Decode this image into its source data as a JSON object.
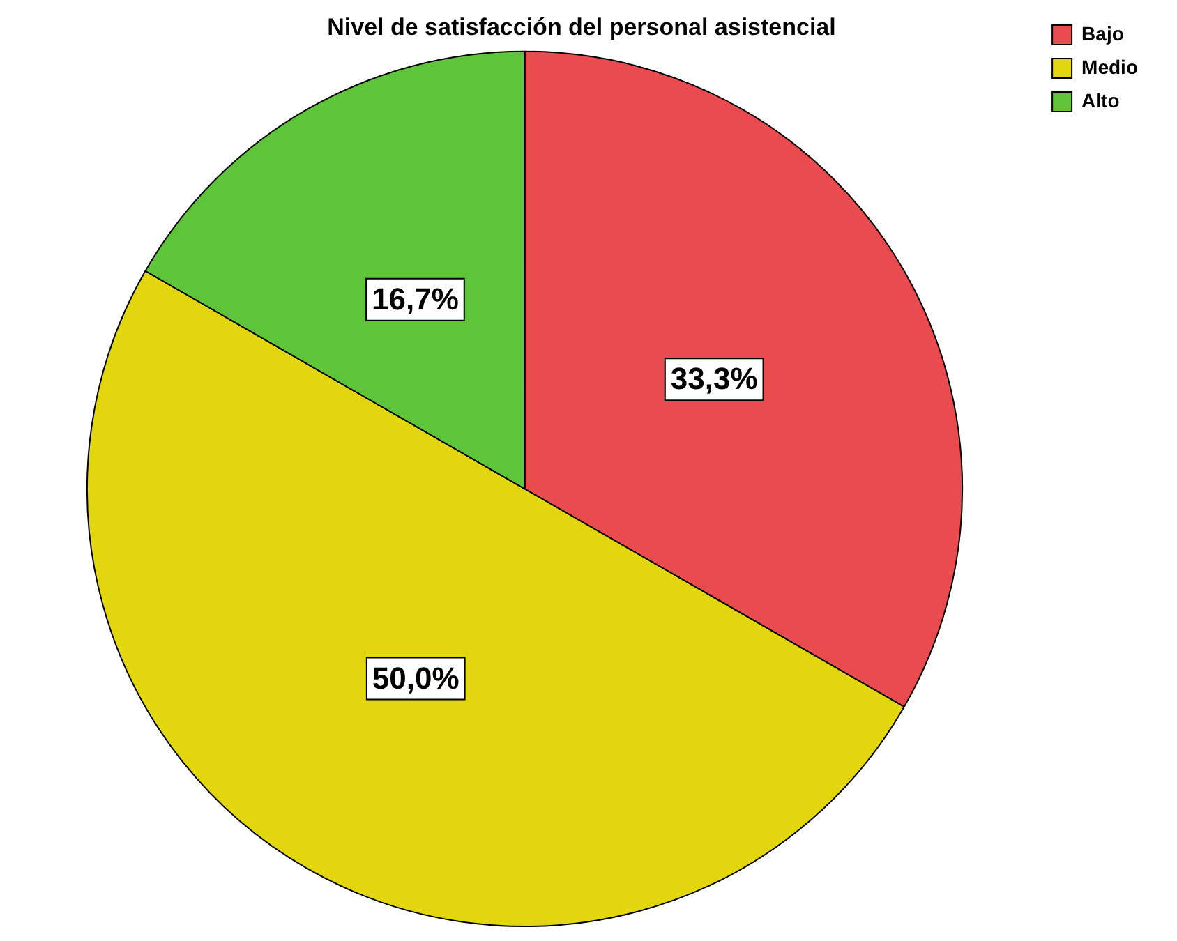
{
  "chart_data": {
    "type": "pie",
    "title": "Nivel de satisfacción del personal asistencial",
    "categories": [
      "Bajo",
      "Medio",
      "Alto"
    ],
    "values": [
      33.3,
      50.0,
      16.7
    ],
    "colors": [
      "#ea4b4f",
      "#e2d60e",
      "#5ec43a"
    ],
    "value_labels": [
      "33,3%",
      "50,0%",
      "16,7%"
    ],
    "legend": "top right"
  }
}
